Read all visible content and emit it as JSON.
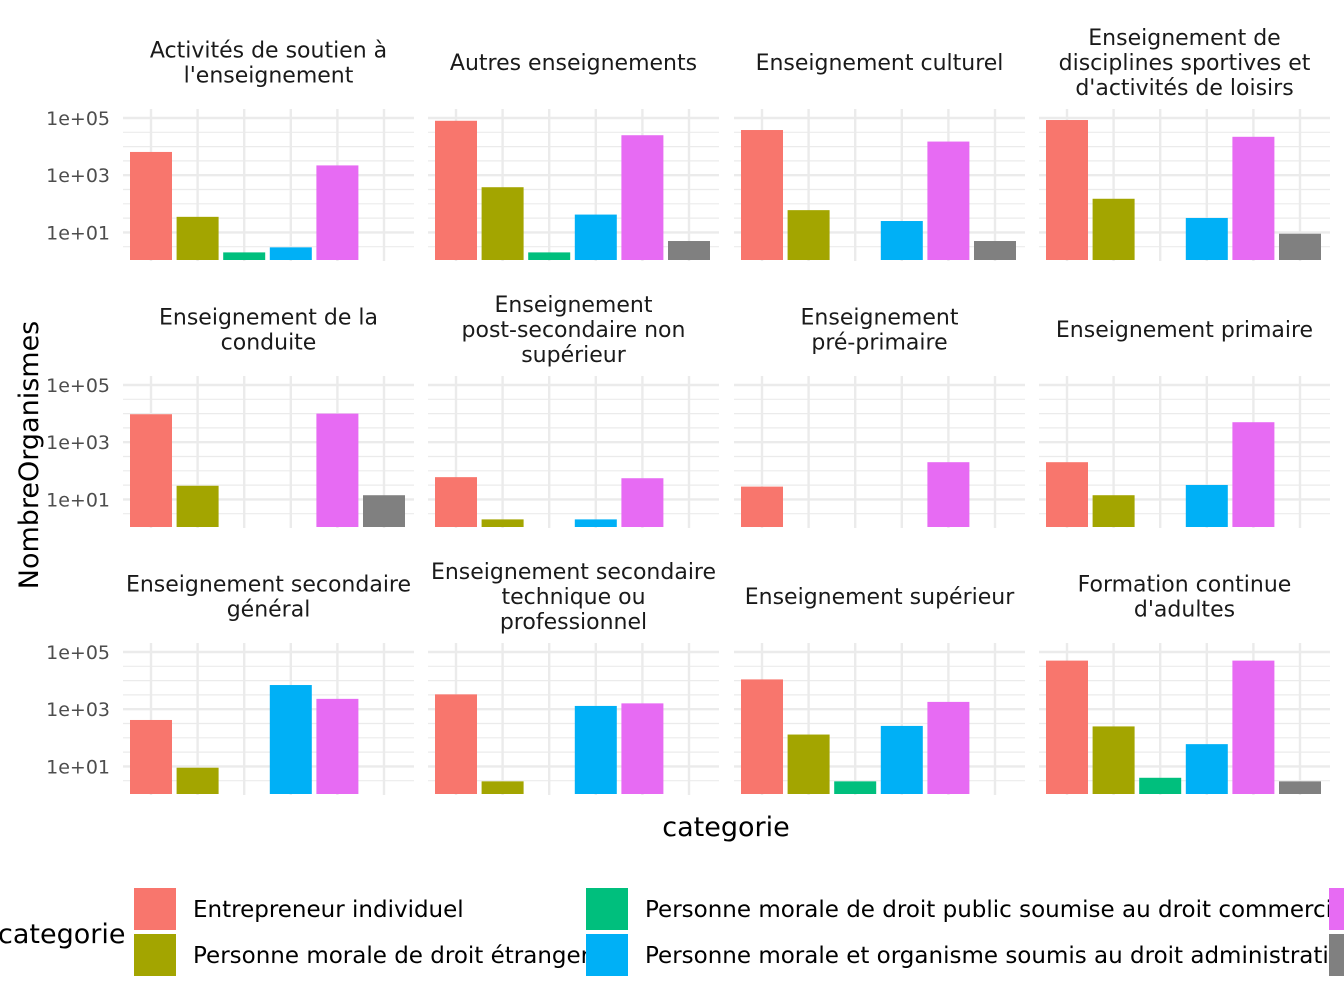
{
  "chart_data": {
    "type": "bar",
    "scale": "log10",
    "grid": true,
    "legend_position": "bottom",
    "xlabel": "categorie",
    "ylabel": "NombreOrganismes",
    "y_ticks": [
      "1e+01",
      "1e+03",
      "1e+05"
    ],
    "legend_title": "categorie",
    "categories": [
      "Entrepreneur individuel",
      "Personne morale de droit étranger",
      "Personne morale de droit public soumise au droit commercial",
      "Personne morale et organisme soumis au droit administratif",
      "",
      ""
    ],
    "colors": [
      "#F8766D",
      "#A3A500",
      "#00BF7D",
      "#00B0F6",
      "#E76BF3",
      "#808080"
    ],
    "facets": [
      {
        "title": [
          "Activités de soutien à",
          "l'enseignement"
        ],
        "values": [
          6500,
          35,
          2,
          3,
          2200,
          null
        ]
      },
      {
        "title": [
          "Autres enseignements"
        ],
        "values": [
          80000,
          380,
          2,
          42,
          25000,
          5
        ]
      },
      {
        "title": [
          "Enseignement culturel"
        ],
        "values": [
          38000,
          60,
          null,
          25,
          15000,
          5
        ]
      },
      {
        "title": [
          "Enseignement de",
          "disciplines sportives et",
          "d'activités de loisirs"
        ],
        "values": [
          85000,
          150,
          null,
          32,
          22000,
          9
        ]
      },
      {
        "title": [
          "Enseignement de la",
          "conduite"
        ],
        "values": [
          9500,
          30,
          null,
          null,
          10000,
          14
        ]
      },
      {
        "title": [
          "Enseignement",
          "post-secondaire non",
          "supérieur"
        ],
        "values": [
          60,
          2,
          null,
          2,
          55,
          null
        ]
      },
      {
        "title": [
          "Enseignement",
          "pré-primaire"
        ],
        "values": [
          28,
          null,
          null,
          null,
          200,
          null
        ]
      },
      {
        "title": [
          "Enseignement primaire"
        ],
        "values": [
          200,
          14,
          null,
          32,
          5000,
          null
        ]
      },
      {
        "title": [
          "Enseignement secondaire",
          "général"
        ],
        "values": [
          420,
          9,
          null,
          7000,
          2300,
          null
        ]
      },
      {
        "title": [
          "Enseignement secondaire",
          "technique ou",
          "professionnel"
        ],
        "values": [
          3300,
          3,
          null,
          1300,
          1600,
          null
        ]
      },
      {
        "title": [
          "Enseignement supérieur"
        ],
        "values": [
          11000,
          130,
          3,
          260,
          1800,
          null
        ]
      },
      {
        "title": [
          "Formation continue",
          "d'adultes"
        ],
        "values": [
          50000,
          250,
          4,
          60,
          50000,
          3
        ]
      }
    ]
  }
}
